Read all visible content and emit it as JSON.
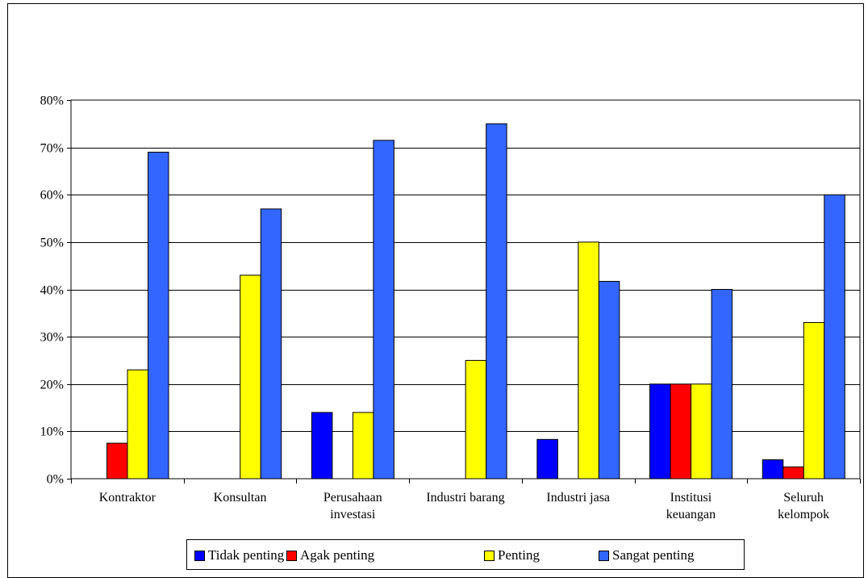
{
  "chart_data": {
    "type": "bar",
    "title": "",
    "xlabel": "",
    "ylabel": "",
    "ylim": [
      0,
      80
    ],
    "yticks": [
      "0%",
      "10%",
      "20%",
      "30%",
      "40%",
      "50%",
      "60%",
      "70%",
      "80%"
    ],
    "grid": true,
    "legend_position": "bottom",
    "categories": [
      [
        "Kontraktor"
      ],
      [
        "Konsultan"
      ],
      [
        "Perusahaan",
        "investasi"
      ],
      [
        "Industri barang"
      ],
      [
        "Industri jasa"
      ],
      [
        "Institusi",
        "keuangan"
      ],
      [
        "Seluruh",
        "kelompok"
      ]
    ],
    "series": [
      {
        "name": "Tidak penting",
        "color": "#0000ff",
        "values": [
          0,
          0,
          14,
          0,
          8.3,
          20,
          4
        ]
      },
      {
        "name": "Agak penting",
        "color": "#ff0000",
        "values": [
          7.5,
          0,
          0,
          0,
          0,
          20,
          2.5
        ]
      },
      {
        "name": "Penting",
        "color": "#ffff00",
        "values": [
          23,
          43,
          14,
          25,
          50,
          20,
          33
        ]
      },
      {
        "name": "Sangat penting",
        "color": "#3366ff",
        "values": [
          69,
          57,
          71.5,
          75,
          41.7,
          40,
          60
        ]
      }
    ]
  }
}
